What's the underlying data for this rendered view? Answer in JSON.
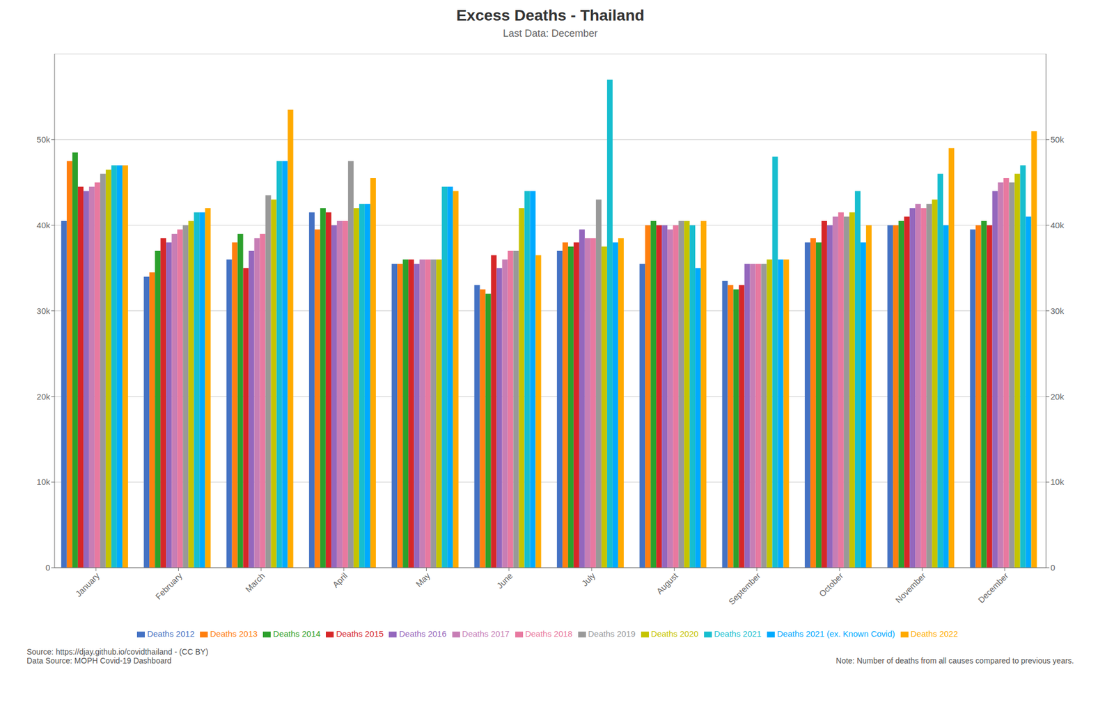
{
  "chart_data": {
    "type": "bar",
    "title": "Excess Deaths - Thailand",
    "subtitle": "Last Data: December",
    "annotations": [
      "Source: https://djay.github.io/covidthailand - (CC BY)\nData Source: MOPH Covid-19 Dashboard",
      "Note: Number of deaths from all causes compared to previous years."
    ],
    "categories": [
      "January",
      "February",
      "March",
      "April",
      "May",
      "June",
      "July",
      "August",
      "September",
      "October",
      "November",
      "December"
    ],
    "series": [
      {
        "name": "Deaths 2012",
        "color": "#4472c4",
        "values": [
          40500,
          34000,
          36000,
          41500,
          35500,
          33000,
          37000,
          35500,
          33500,
          38000,
          40000,
          39500
        ]
      },
      {
        "name": "Deaths 2013",
        "color": "#ff7f0e",
        "values": [
          47500,
          34500,
          38000,
          39500,
          35500,
          32500,
          38000,
          40000,
          33000,
          38500,
          40000,
          40000
        ]
      },
      {
        "name": "Deaths 2014",
        "color": "#2ca02c",
        "values": [
          48500,
          37000,
          39000,
          42000,
          36000,
          32000,
          37500,
          40500,
          32500,
          38000,
          40500,
          40500
        ]
      },
      {
        "name": "Deaths 2015",
        "color": "#d62728",
        "values": [
          44500,
          38500,
          35000,
          41500,
          36000,
          36500,
          38000,
          40000,
          33000,
          40500,
          41000,
          40000
        ]
      },
      {
        "name": "Deaths 2016",
        "color": "#9467bd",
        "values": [
          44000,
          38000,
          37000,
          40000,
          35500,
          35000,
          39500,
          40000,
          35500,
          40000,
          42000,
          44000
        ]
      },
      {
        "name": "Deaths 2017",
        "color": "#c77eb5",
        "values": [
          44500,
          39000,
          38500,
          40500,
          36000,
          36000,
          38500,
          39500,
          35500,
          41000,
          42500,
          45000
        ]
      },
      {
        "name": "Deaths 2018",
        "color": "#e879a0",
        "values": [
          45000,
          39500,
          39000,
          40500,
          36000,
          37000,
          38500,
          40000,
          35500,
          41500,
          42000,
          45500
        ]
      },
      {
        "name": "Deaths 2019",
        "color": "#999999",
        "values": [
          46000,
          40000,
          43500,
          47500,
          36000,
          37000,
          43000,
          40500,
          35500,
          41000,
          42500,
          45000
        ]
      },
      {
        "name": "Deaths 2020",
        "color": "#c5c400",
        "values": [
          46500,
          40500,
          43000,
          42000,
          36000,
          42000,
          37500,
          40500,
          36000,
          41500,
          43000,
          46000
        ]
      },
      {
        "name": "Deaths 2021",
        "color": "#17becf",
        "values": [
          47000,
          41500,
          47500,
          42500,
          44500,
          44000,
          57000,
          40000,
          48000,
          44000,
          46000,
          47000
        ]
      },
      {
        "name": "Deaths 2021 (ex. Known Covid)",
        "color": "#00aaff",
        "values": [
          47000,
          41500,
          47500,
          42500,
          44500,
          44000,
          38000,
          35000,
          36000,
          38000,
          40000,
          41000
        ]
      },
      {
        "name": "Deaths 2022",
        "color": "#ffaa00",
        "values": [
          47000,
          42000,
          53500,
          45500,
          44000,
          36500,
          38500,
          40500,
          36000,
          40000,
          49000,
          51000
        ]
      }
    ],
    "ylim": [
      0,
      60000
    ],
    "yticks": [
      0,
      {
        "value": 10000,
        "label": "10k"
      },
      {
        "value": 20000,
        "label": "20k"
      },
      {
        "value": 30000,
        "label": "30k"
      },
      {
        "value": 40000,
        "label": "40k"
      },
      {
        "value": 50000,
        "label": "50k"
      }
    ],
    "y2lim": [
      0,
      60000
    ],
    "y2ticks": [
      0,
      {
        "value": 10000,
        "label": "10k"
      },
      {
        "value": 20000,
        "label": "20k"
      },
      {
        "value": 30000,
        "label": "30k"
      },
      {
        "value": 40000,
        "label": "40k"
      },
      {
        "value": 50000,
        "label": "50k"
      }
    ],
    "grid": true,
    "legend": "lower center"
  }
}
